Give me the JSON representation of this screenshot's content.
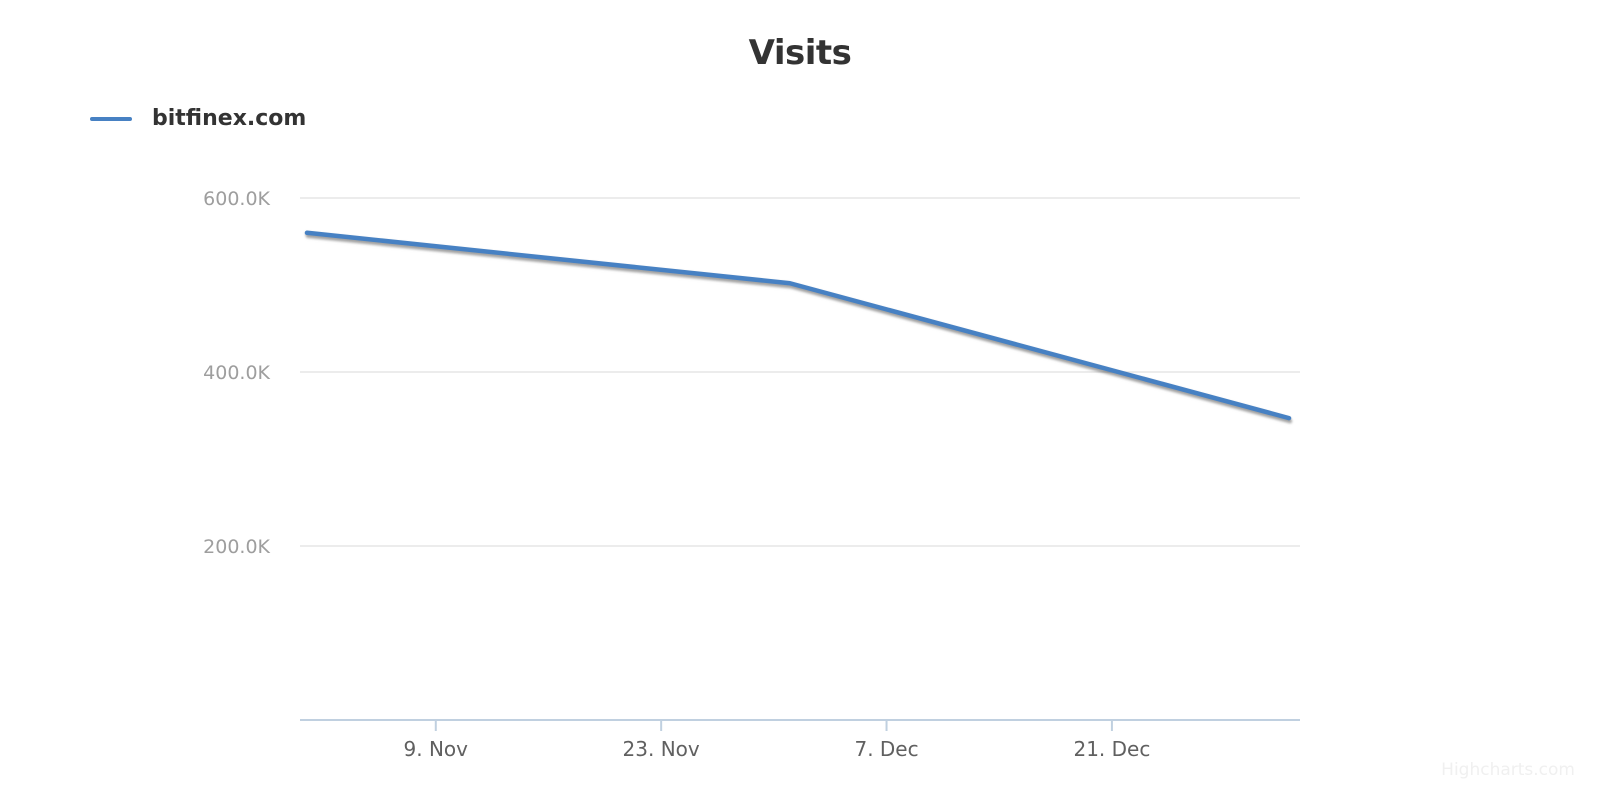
{
  "chart_data": {
    "type": "line",
    "title": "Visits",
    "credits": "Highcharts.com",
    "legend_position": "top-left",
    "grid": true,
    "x_axis": {
      "kind": "date",
      "range_days": [
        0,
        61
      ],
      "start_label": "1. Nov",
      "end_label": "1. Jan",
      "ticks": [
        {
          "label": "9. Nov",
          "day": 8
        },
        {
          "label": "23. Nov",
          "day": 22
        },
        {
          "label": "7. Dec",
          "day": 36
        },
        {
          "label": "21. Dec",
          "day": 50
        }
      ]
    },
    "y_axis": {
      "range": [
        0,
        600000
      ],
      "ticks": [
        {
          "label": "600.0K",
          "value": 600000
        },
        {
          "label": "400.0K",
          "value": 400000
        },
        {
          "label": "200.0K",
          "value": 200000
        }
      ]
    },
    "series": [
      {
        "name": "bitfinex.com",
        "color": "#4781c3",
        "points": [
          {
            "date": "1. Nov",
            "day": 0,
            "visits": 560000
          },
          {
            "date": "1. Dec",
            "day": 30,
            "visits": 502000
          },
          {
            "date": "1. Jan",
            "day": 61,
            "visits": 347000
          }
        ]
      }
    ],
    "colors": {
      "grid": "#e6e6e6",
      "axis": "#c0d0e0",
      "x_label": "#606060",
      "y_label": "#9e9e9e",
      "title": "#333333"
    }
  }
}
